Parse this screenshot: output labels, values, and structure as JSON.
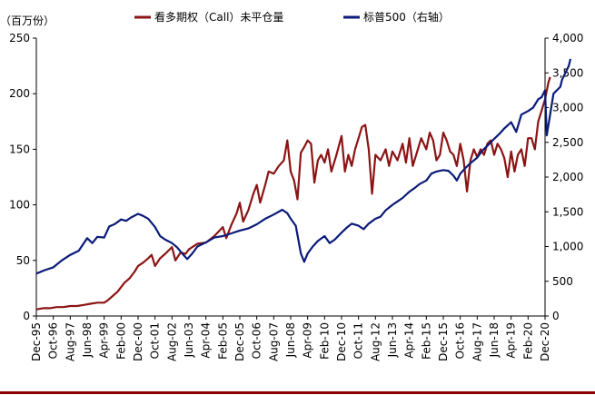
{
  "chart_data": {
    "type": "line",
    "title": "",
    "units_label": "（百万份）",
    "x_ticks": [
      "Dec-95",
      "Oct-96",
      "Aug-97",
      "Jun-98",
      "Apr-99",
      "Feb-00",
      "Dec-00",
      "Oct-01",
      "Aug-02",
      "Jun-03",
      "Apr-04",
      "Feb-05",
      "Dec-05",
      "Oct-06",
      "Aug-07",
      "Jun-08",
      "Apr-09",
      "Feb-10",
      "Dec-10",
      "Oct-11",
      "Aug-12",
      "Jun-13",
      "Apr-14",
      "Feb-15",
      "Dec-15",
      "Oct-16",
      "Aug-17",
      "Jun-18",
      "Apr-19",
      "Feb-20",
      "Dec-20"
    ],
    "y_left": {
      "range": [
        0,
        250
      ],
      "ticks": [
        "0",
        "50",
        "100",
        "150",
        "200",
        "250"
      ]
    },
    "y_right": {
      "range": [
        0,
        4000
      ],
      "ticks": [
        "0",
        "500",
        "1,000",
        "1,500",
        "2,000",
        "2,500",
        "3,000",
        "3,500",
        "4,000"
      ]
    },
    "series": [
      {
        "name": "看多期权（Call）未平仓量",
        "axis": "left",
        "color": "#8b1414",
        "points": [
          [
            0,
            6
          ],
          [
            0.4,
            7
          ],
          [
            0.8,
            7
          ],
          [
            1.2,
            8
          ],
          [
            1.6,
            8
          ],
          [
            2,
            9
          ],
          [
            2.4,
            9
          ],
          [
            2.8,
            10
          ],
          [
            3.2,
            11
          ],
          [
            3.6,
            12
          ],
          [
            4,
            12
          ],
          [
            4.2,
            14
          ],
          [
            4.5,
            18
          ],
          [
            4.8,
            22
          ],
          [
            5,
            26
          ],
          [
            5.2,
            30
          ],
          [
            5.5,
            34
          ],
          [
            5.8,
            40
          ],
          [
            6,
            45
          ],
          [
            6.3,
            48
          ],
          [
            6.6,
            52
          ],
          [
            6.8,
            55
          ],
          [
            7,
            45
          ],
          [
            7.3,
            52
          ],
          [
            7.6,
            56
          ],
          [
            8,
            62
          ],
          [
            8.2,
            50
          ],
          [
            8.5,
            57
          ],
          [
            8.8,
            56
          ],
          [
            9,
            60
          ],
          [
            9.5,
            65
          ],
          [
            10,
            66
          ],
          [
            10.5,
            72
          ],
          [
            11,
            80
          ],
          [
            11.2,
            70
          ],
          [
            11.5,
            82
          ],
          [
            11.8,
            92
          ],
          [
            12,
            102
          ],
          [
            12.2,
            85
          ],
          [
            12.5,
            95
          ],
          [
            12.8,
            110
          ],
          [
            13,
            118
          ],
          [
            13.2,
            102
          ],
          [
            13.5,
            118
          ],
          [
            13.7,
            130
          ],
          [
            14,
            128
          ],
          [
            14.3,
            135
          ],
          [
            14.6,
            140
          ],
          [
            14.8,
            158
          ],
          [
            15,
            130
          ],
          [
            15.2,
            122
          ],
          [
            15.4,
            105
          ],
          [
            15.6,
            147
          ],
          [
            15.8,
            152
          ],
          [
            16,
            158
          ],
          [
            16.2,
            155
          ],
          [
            16.4,
            120
          ],
          [
            16.6,
            140
          ],
          [
            16.8,
            145
          ],
          [
            17,
            138
          ],
          [
            17.2,
            150
          ],
          [
            17.4,
            130
          ],
          [
            17.7,
            145
          ],
          [
            18,
            162
          ],
          [
            18.2,
            130
          ],
          [
            18.4,
            145
          ],
          [
            18.6,
            135
          ],
          [
            18.8,
            150
          ],
          [
            19,
            160
          ],
          [
            19.2,
            170
          ],
          [
            19.4,
            172
          ],
          [
            19.6,
            150
          ],
          [
            19.8,
            110
          ],
          [
            20,
            145
          ],
          [
            20.3,
            140
          ],
          [
            20.6,
            150
          ],
          [
            20.8,
            135
          ],
          [
            21,
            148
          ],
          [
            21.3,
            140
          ],
          [
            21.6,
            155
          ],
          [
            21.8,
            138
          ],
          [
            22,
            160
          ],
          [
            22.2,
            135
          ],
          [
            22.5,
            150
          ],
          [
            22.7,
            160
          ],
          [
            23,
            150
          ],
          [
            23.2,
            165
          ],
          [
            23.4,
            158
          ],
          [
            23.6,
            140
          ],
          [
            23.8,
            145
          ],
          [
            24,
            165
          ],
          [
            24.2,
            158
          ],
          [
            24.4,
            148
          ],
          [
            24.6,
            145
          ],
          [
            24.8,
            135
          ],
          [
            25,
            155
          ],
          [
            25.2,
            140
          ],
          [
            25.4,
            112
          ],
          [
            25.6,
            140
          ],
          [
            25.8,
            150
          ],
          [
            26,
            143
          ],
          [
            26.2,
            150
          ],
          [
            26.4,
            145
          ],
          [
            26.6,
            155
          ],
          [
            26.8,
            158
          ],
          [
            27,
            145
          ],
          [
            27.2,
            155
          ],
          [
            27.4,
            150
          ],
          [
            27.6,
            142
          ],
          [
            27.8,
            125
          ],
          [
            28,
            148
          ],
          [
            28.2,
            130
          ],
          [
            28.4,
            145
          ],
          [
            28.6,
            150
          ],
          [
            28.8,
            135
          ],
          [
            29,
            160
          ],
          [
            29.2,
            160
          ],
          [
            29.4,
            150
          ],
          [
            29.6,
            175
          ],
          [
            29.8,
            185
          ],
          [
            30,
            195
          ],
          [
            30.2,
            210
          ],
          [
            30.3,
            215
          ]
        ]
      },
      {
        "name": "标普500（右轴）",
        "axis": "right",
        "color": "#0a1a78",
        "points": [
          [
            0,
            610
          ],
          [
            0.5,
            660
          ],
          [
            1,
            700
          ],
          [
            1.5,
            800
          ],
          [
            2,
            880
          ],
          [
            2.5,
            940
          ],
          [
            3,
            1120
          ],
          [
            3.3,
            1050
          ],
          [
            3.6,
            1140
          ],
          [
            4,
            1130
          ],
          [
            4.3,
            1290
          ],
          [
            4.6,
            1320
          ],
          [
            5,
            1390
          ],
          [
            5.3,
            1370
          ],
          [
            5.6,
            1420
          ],
          [
            6,
            1470
          ],
          [
            6.3,
            1440
          ],
          [
            6.6,
            1400
          ],
          [
            7,
            1280
          ],
          [
            7.3,
            1150
          ],
          [
            7.6,
            1100
          ],
          [
            8,
            1050
          ],
          [
            8.3,
            990
          ],
          [
            8.6,
            900
          ],
          [
            8.9,
            820
          ],
          [
            9.2,
            900
          ],
          [
            9.5,
            1000
          ],
          [
            10,
            1060
          ],
          [
            10.5,
            1130
          ],
          [
            11,
            1150
          ],
          [
            11.5,
            1190
          ],
          [
            12,
            1230
          ],
          [
            12.5,
            1260
          ],
          [
            13,
            1320
          ],
          [
            13.5,
            1400
          ],
          [
            14,
            1460
          ],
          [
            14.5,
            1530
          ],
          [
            14.8,
            1480
          ],
          [
            15,
            1400
          ],
          [
            15.3,
            1300
          ],
          [
            15.6,
            900
          ],
          [
            15.8,
            780
          ],
          [
            16,
            900
          ],
          [
            16.3,
            1000
          ],
          [
            16.6,
            1080
          ],
          [
            17,
            1150
          ],
          [
            17.3,
            1050
          ],
          [
            17.6,
            1100
          ],
          [
            18,
            1200
          ],
          [
            18.3,
            1270
          ],
          [
            18.6,
            1330
          ],
          [
            19,
            1300
          ],
          [
            19.3,
            1250
          ],
          [
            19.6,
            1330
          ],
          [
            20,
            1400
          ],
          [
            20.3,
            1430
          ],
          [
            20.6,
            1520
          ],
          [
            21,
            1600
          ],
          [
            21.3,
            1650
          ],
          [
            21.6,
            1700
          ],
          [
            22,
            1790
          ],
          [
            22.3,
            1840
          ],
          [
            22.6,
            1900
          ],
          [
            23,
            1950
          ],
          [
            23.3,
            2050
          ],
          [
            23.6,
            2080
          ],
          [
            24,
            2100
          ],
          [
            24.3,
            2090
          ],
          [
            24.6,
            2020
          ],
          [
            24.8,
            1950
          ],
          [
            25,
            2050
          ],
          [
            25.3,
            2130
          ],
          [
            25.6,
            2200
          ],
          [
            26,
            2280
          ],
          [
            26.3,
            2380
          ],
          [
            26.6,
            2450
          ],
          [
            27,
            2550
          ],
          [
            27.3,
            2620
          ],
          [
            27.6,
            2700
          ],
          [
            28,
            2790
          ],
          [
            28.3,
            2650
          ],
          [
            28.6,
            2900
          ],
          [
            29,
            2950
          ],
          [
            29.3,
            3000
          ],
          [
            29.6,
            3120
          ],
          [
            29.8,
            3150
          ],
          [
            30,
            3250
          ],
          [
            30.1,
            2600
          ],
          [
            30.3,
            2900
          ],
          [
            30.5,
            3200
          ],
          [
            30.7,
            3250
          ],
          [
            30.9,
            3300
          ],
          [
            31,
            3400
          ],
          [
            31.2,
            3500
          ],
          [
            31.4,
            3600
          ],
          [
            31.5,
            3700
          ]
        ]
      }
    ],
    "legend": {
      "placement": "top",
      "entries": [
        "看多期权（Call）未平仓量",
        "标普500（右轴）"
      ]
    }
  }
}
